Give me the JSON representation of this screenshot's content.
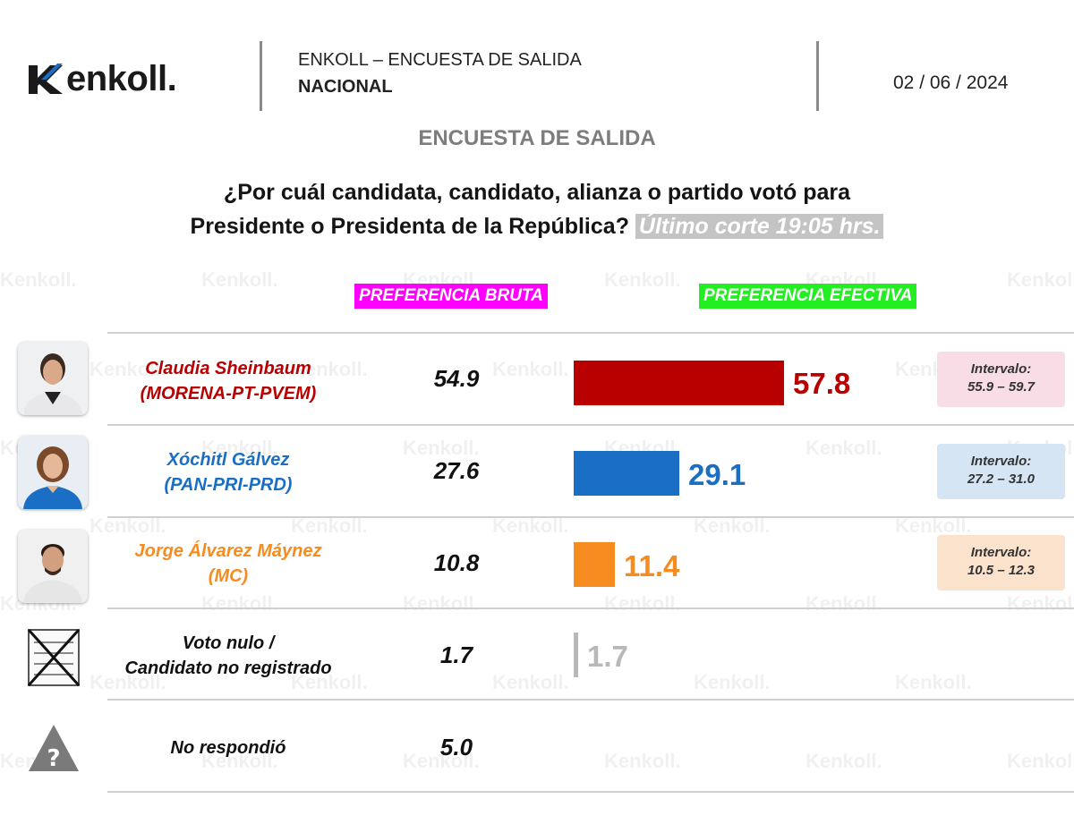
{
  "header": {
    "brand": "enkoll.",
    "title": "ENKOLL – ENCUESTA DE SALIDA",
    "subtitle": "NACIONAL",
    "date": "02 / 06 / 2024"
  },
  "survey_title": "ENCUESTA DE SALIDA",
  "question_line1": "¿Por cuál candidata, candidato, alianza o partido votó para",
  "question_line2": "Presidente o Presidenta de la República?",
  "cut_time": "Último corte 19:05 hrs.",
  "column_bruta": "PREFERENCIA BRUTA",
  "column_efectiva": "PREFERENCIA EFECTIVA",
  "watermark": "enkoll.",
  "colors": {
    "sheinbaum": "#b80000",
    "galvez": "#1a6fc4",
    "maynez": "#f68b1f",
    "nulo": "#b8b8b8",
    "bruta_highlight": "#ff00ff",
    "efectiva_highlight": "#22ee22"
  },
  "rows": [
    {
      "name": "Claudia Sheinbaum",
      "party": "(MORENA-PT-PVEM)",
      "bruta": "54.9",
      "efectiva": "57.8",
      "interval_label": "Intervalo:",
      "interval_range": "55.9 – 59.7",
      "photo": "claudia-sheinbaum-photo"
    },
    {
      "name": "Xóchitl Gálvez",
      "party": "(PAN-PRI-PRD)",
      "bruta": "27.6",
      "efectiva": "29.1",
      "interval_label": "Intervalo:",
      "interval_range": "27.2 – 31.0",
      "photo": "xochitl-galvez-photo"
    },
    {
      "name": "Jorge Álvarez Máynez",
      "party": "(MC)",
      "bruta": "10.8",
      "efectiva": "11.4",
      "interval_label": "Intervalo:",
      "interval_range": "10.5 – 12.3",
      "photo": "jorge-alvarez-maynez-photo"
    },
    {
      "name": "Voto nulo /",
      "party": "Candidato no registrado",
      "bruta": "1.7",
      "efectiva": "1.7",
      "icon": "crossed-ballot-icon"
    },
    {
      "name": "No respondió",
      "bruta": "5.0",
      "icon": "question-warning-icon"
    }
  ],
  "chart_data": {
    "type": "bar",
    "orientation": "horizontal",
    "title": "¿Por cuál candidata, candidato, alianza o partido votó para Presidente o Presidenta de la República?",
    "categories": [
      "Claudia Sheinbaum (MORENA-PT-PVEM)",
      "Xóchitl Gálvez (PAN-PRI-PRD)",
      "Jorge Álvarez Máynez (MC)",
      "Voto nulo / Candidato no registrado",
      "No respondió"
    ],
    "series": [
      {
        "name": "PREFERENCIA BRUTA",
        "values": [
          54.9,
          27.6,
          10.8,
          1.7,
          5.0
        ]
      },
      {
        "name": "PREFERENCIA EFECTIVA",
        "values": [
          57.8,
          29.1,
          11.4,
          1.7,
          null
        ]
      }
    ],
    "intervals": [
      [
        55.9,
        59.7
      ],
      [
        27.2,
        31.0
      ],
      [
        10.5,
        12.3
      ],
      null,
      null
    ],
    "bar_colors": [
      "#b80000",
      "#1a6fc4",
      "#f68b1f",
      "#b8b8b8"
    ],
    "xlim": [
      0,
      57.8
    ],
    "grid": false
  }
}
